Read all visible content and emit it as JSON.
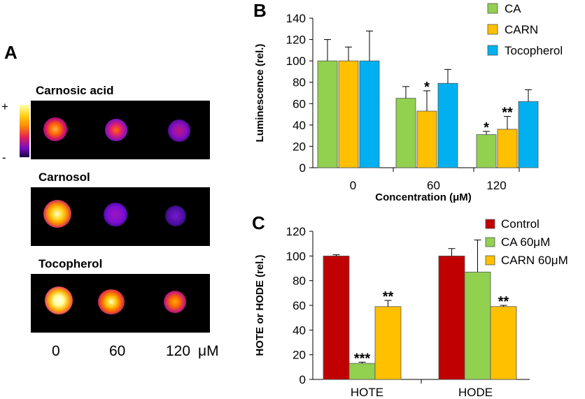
{
  "panel_a": {
    "letter": "A",
    "titles": [
      "Carnosic acid",
      "Carnosol",
      "Tocopherol"
    ],
    "scale_plus": "+",
    "scale_minus": "-",
    "concentrations": [
      "0",
      "60",
      "120"
    ],
    "unit": "μM"
  },
  "chart_data": [
    {
      "letter": "B",
      "type": "bar",
      "categories": [
        "0",
        "60",
        "120"
      ],
      "series": [
        {
          "name": "CA",
          "color": "#92d050",
          "values": [
            100,
            65,
            31
          ],
          "errors": [
            20,
            11,
            3
          ],
          "sig": [
            "",
            "",
            "*"
          ]
        },
        {
          "name": "CARN",
          "color": "#ffc000",
          "values": [
            100,
            53,
            36
          ],
          "errors": [
            13,
            19,
            12
          ],
          "sig": [
            "",
            "*",
            "**"
          ]
        },
        {
          "name": "Tocopherol",
          "color": "#00b0f0",
          "values": [
            100,
            79,
            62
          ],
          "errors": [
            28,
            13,
            11
          ],
          "sig": [
            "",
            "",
            ""
          ]
        }
      ],
      "xlabel": "Concentration (μM)",
      "ylabel": "Luminescence (rel.)",
      "ylim": [
        0,
        140
      ],
      "yticks": [
        0,
        20,
        40,
        60,
        80,
        100,
        120,
        140
      ],
      "legend_position": "top-right",
      "grid": false
    },
    {
      "letter": "C",
      "type": "bar",
      "categories": [
        "HOTE",
        "HODE"
      ],
      "series": [
        {
          "name": "Control",
          "color": "#c00000",
          "values": [
            100,
            100
          ],
          "errors": [
            1,
            6
          ],
          "sig": [
            "",
            ""
          ]
        },
        {
          "name": "CA 60μM",
          "color": "#92d050",
          "values": [
            13,
            87
          ],
          "errors": [
            1,
            26
          ],
          "sig": [
            "***",
            ""
          ]
        },
        {
          "name": "CARN 60μM",
          "color": "#ffc000",
          "values": [
            59,
            59
          ],
          "errors": [
            5,
            1
          ],
          "sig": [
            "**",
            "**"
          ]
        }
      ],
      "xlabel": "",
      "ylabel": "HOTE or HODE (rel.)",
      "ylim": [
        0,
        120
      ],
      "yticks": [
        0,
        20,
        40,
        60,
        80,
        100,
        120
      ],
      "legend_position": "top-right",
      "grid": false
    }
  ]
}
